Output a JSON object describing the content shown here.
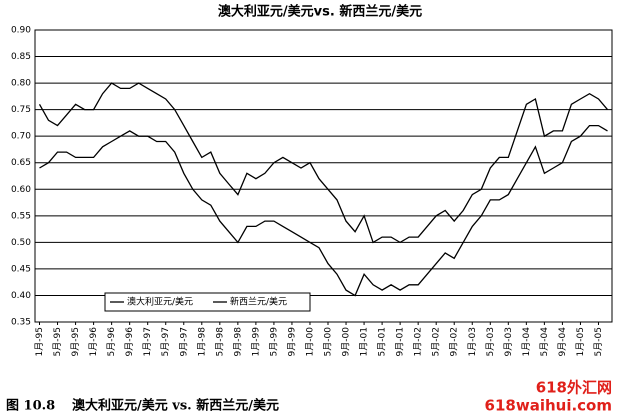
{
  "chart_data": {
    "type": "line",
    "title": "澳大利亚元/美元vs. 新西兰元/美元",
    "categories": [
      "1月-95",
      null,
      "5月-95",
      null,
      "9月-95",
      null,
      "1月-96",
      null,
      "5月-96",
      null,
      "9月-96",
      null,
      "1月-97",
      null,
      "5月-97",
      null,
      "9月-97",
      null,
      "1月-98",
      null,
      "5月-98",
      null,
      "9月-98",
      null,
      "1月-99",
      null,
      "5月-99",
      null,
      "9月-99",
      null,
      "1月-00",
      null,
      "5月-00",
      null,
      "9月-00",
      null,
      "1月-01",
      null,
      "5月-01",
      null,
      "9月-01",
      null,
      "1月-02",
      null,
      "5月-02",
      null,
      "9月-02",
      null,
      "1月-03",
      null,
      "5月-03",
      null,
      "9月-03",
      null,
      "1月-04",
      null,
      "5月-04",
      null,
      "9月-04",
      null,
      "1月-05",
      null,
      "5月-05",
      null
    ],
    "series": [
      {
        "name": "澳大利亚元/美元",
        "color": "#000000",
        "values": [
          0.76,
          0.73,
          0.72,
          0.74,
          0.76,
          0.75,
          0.75,
          0.78,
          0.8,
          0.79,
          0.79,
          0.8,
          0.79,
          0.78,
          0.77,
          0.75,
          0.72,
          0.69,
          0.66,
          0.67,
          0.63,
          0.61,
          0.59,
          0.63,
          0.62,
          0.63,
          0.65,
          0.66,
          0.65,
          0.64,
          0.65,
          0.62,
          0.6,
          0.58,
          0.54,
          0.52,
          0.55,
          0.5,
          0.51,
          0.51,
          0.5,
          0.51,
          0.51,
          0.53,
          0.55,
          0.56,
          0.54,
          0.56,
          0.59,
          0.6,
          0.64,
          0.66,
          0.66,
          0.71,
          0.76,
          0.77,
          0.7,
          0.71,
          0.71,
          0.76,
          0.77,
          0.78,
          0.77,
          0.75
        ]
      },
      {
        "name": "新西兰元/美元",
        "color": "#000000",
        "values": [
          0.64,
          0.65,
          0.67,
          0.67,
          0.66,
          0.66,
          0.66,
          0.68,
          0.69,
          0.7,
          0.71,
          0.7,
          0.7,
          0.69,
          0.69,
          0.67,
          0.63,
          0.6,
          0.58,
          0.57,
          0.54,
          0.52,
          0.5,
          0.53,
          0.53,
          0.54,
          0.54,
          0.53,
          0.52,
          0.51,
          0.5,
          0.49,
          0.46,
          0.44,
          0.41,
          0.4,
          0.44,
          0.42,
          0.41,
          0.42,
          0.41,
          0.42,
          0.42,
          0.44,
          0.46,
          0.48,
          0.47,
          0.5,
          0.53,
          0.55,
          0.58,
          0.58,
          0.59,
          0.62,
          0.65,
          0.68,
          0.63,
          0.64,
          0.65,
          0.69,
          0.7,
          0.72,
          0.72,
          0.71
        ]
      }
    ],
    "ylim": [
      0.35,
      0.9
    ],
    "yticks": [
      0.35,
      {
        "value": 0.4,
        "label": "0.40"
      },
      0.45,
      {
        "value": 0.5,
        "label": "0.50"
      },
      0.55,
      {
        "value": 0.6,
        "label": "0.60"
      },
      0.65,
      {
        "value": 0.7,
        "label": "0.70"
      },
      0.75,
      {
        "value": 0.8,
        "label": "0.80"
      },
      0.85,
      {
        "value": 0.9,
        "label": "0.90"
      }
    ],
    "grid": true,
    "legend": "bottom-left"
  },
  "caption": {
    "figure": "图 10.8",
    "text": "澳大利亚元/美元 vs. 新西兰元/美元"
  },
  "watermark": {
    "name": "618外汇网",
    "site": "618waihui.com"
  }
}
